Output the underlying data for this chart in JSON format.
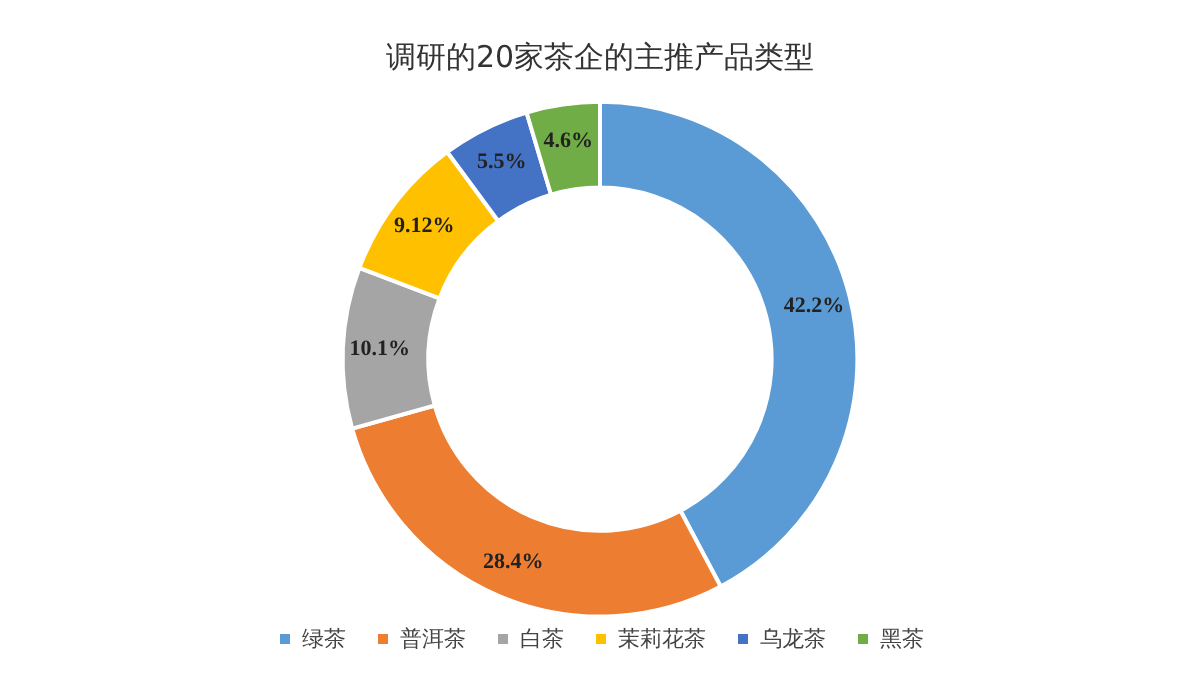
{
  "chart_data": {
    "type": "donut",
    "title": "调研的20家茶企的主推产品类型",
    "categories": [
      "绿茶",
      "普洱茶",
      "白茶",
      "茉莉花茶",
      "乌龙茶",
      "黑茶"
    ],
    "values": [
      42.2,
      28.4,
      10.1,
      9.12,
      5.5,
      4.6
    ],
    "value_labels": [
      "42.2%",
      "28.4%",
      "10.1%",
      "9.12%",
      "5.5%",
      "4.6%"
    ],
    "colors": [
      "#5b9bd5",
      "#ed7d31",
      "#a5a5a5",
      "#ffc000",
      "#4472c4",
      "#70ad47"
    ],
    "legend": "bottom"
  }
}
